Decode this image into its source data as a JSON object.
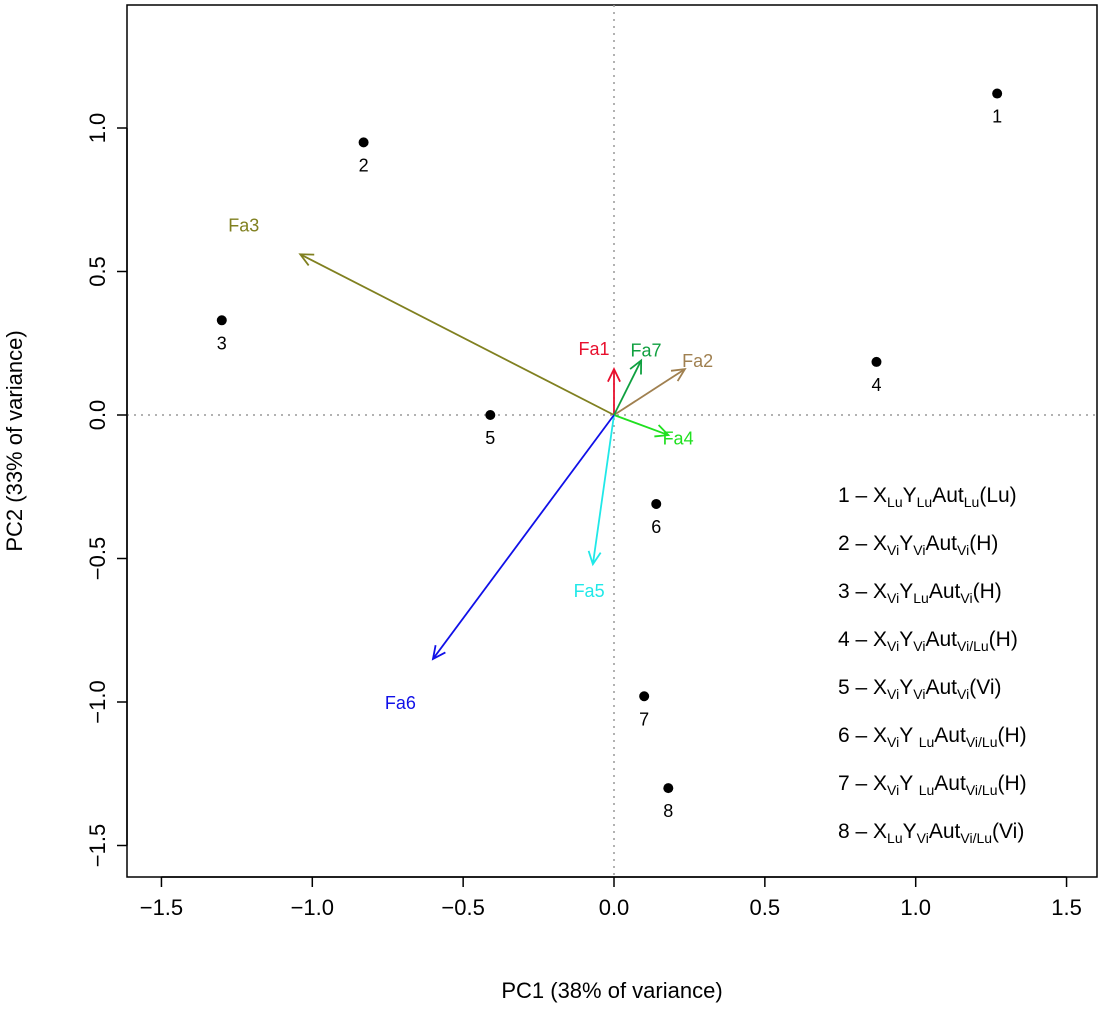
{
  "chart_data": {
    "type": "scatter",
    "subtype": "pca-biplot",
    "xlabel": "PC1 (38% of variance)",
    "ylabel": "PC2 (33% of variance)",
    "xlim": [
      -1.6,
      1.6
    ],
    "ylim": [
      -1.6,
      1.4
    ],
    "xticks": [
      -1.5,
      -1.0,
      -0.5,
      0.0,
      0.5,
      1.0,
      1.5
    ],
    "xtick_labels": [
      "−1.5",
      "−1.0",
      "−0.5",
      "0.0",
      "0.5",
      "1.0",
      "1.5"
    ],
    "yticks": [
      -1.5,
      -1.0,
      -0.5,
      0.0,
      0.5,
      1.0
    ],
    "ytick_labels": [
      "−1.5",
      "−1.0",
      "−0.5",
      "0.0",
      "0.5",
      "1.0"
    ],
    "grid": false,
    "reference_lines": [
      0,
      0
    ],
    "points": [
      {
        "label": "1",
        "x": 1.27,
        "y": 1.12
      },
      {
        "label": "2",
        "x": -0.83,
        "y": 0.95
      },
      {
        "label": "3",
        "x": -1.3,
        "y": 0.33
      },
      {
        "label": "4",
        "x": 0.87,
        "y": 0.185
      },
      {
        "label": "5",
        "x": -0.41,
        "y": 0.0
      },
      {
        "label": "6",
        "x": 0.14,
        "y": -0.31
      },
      {
        "label": "7",
        "x": 0.1,
        "y": -0.98
      },
      {
        "label": "8",
        "x": 0.18,
        "y": -1.3
      }
    ],
    "vectors": [
      {
        "label": "Fa1",
        "x": 0.0,
        "y": 0.16,
        "color": "#e8102e"
      },
      {
        "label": "Fa2",
        "x": 0.235,
        "y": 0.16,
        "color": "#a08050"
      },
      {
        "label": "Fa3",
        "x": -1.04,
        "y": 0.56,
        "color": "#808020"
      },
      {
        "label": "Fa4",
        "x": 0.18,
        "y": -0.07,
        "color": "#20e020"
      },
      {
        "label": "Fa5",
        "x": -0.07,
        "y": -0.52,
        "color": "#20e8e8"
      },
      {
        "label": "Fa6",
        "x": -0.6,
        "y": -0.85,
        "color": "#1010e8"
      },
      {
        "label": "Fa7",
        "x": 0.09,
        "y": 0.19,
        "color": "#10a040"
      }
    ],
    "legend": {
      "placement": "bottom-right",
      "entries": [
        [
          {
            "t": "1 – X"
          },
          {
            "t": "Lu",
            "sub": true
          },
          {
            "t": "Y"
          },
          {
            "t": "Lu",
            "sub": true
          },
          {
            "t": "Aut"
          },
          {
            "t": "Lu",
            "sub": true
          },
          {
            "t": "(Lu)"
          }
        ],
        [
          {
            "t": "2 – X"
          },
          {
            "t": "Vi",
            "sub": true
          },
          {
            "t": "Y"
          },
          {
            "t": "Vi",
            "sub": true
          },
          {
            "t": "Aut"
          },
          {
            "t": "Vi",
            "sub": true
          },
          {
            "t": "(H)"
          }
        ],
        [
          {
            "t": "3 – X"
          },
          {
            "t": "Vi",
            "sub": true
          },
          {
            "t": "Y"
          },
          {
            "t": "Lu",
            "sub": true
          },
          {
            "t": "Aut"
          },
          {
            "t": "Vi",
            "sub": true
          },
          {
            "t": "(H)"
          }
        ],
        [
          {
            "t": "4 – X"
          },
          {
            "t": "Vi",
            "sub": true
          },
          {
            "t": "Y"
          },
          {
            "t": "Vi",
            "sub": true
          },
          {
            "t": "Aut"
          },
          {
            "t": "Vi/Lu",
            "sub": true
          },
          {
            "t": "(H)"
          }
        ],
        [
          {
            "t": "5 – X"
          },
          {
            "t": "Vi",
            "sub": true
          },
          {
            "t": "Y"
          },
          {
            "t": "Vi",
            "sub": true
          },
          {
            "t": "Aut"
          },
          {
            "t": "Vi",
            "sub": true
          },
          {
            "t": "(Vi)"
          }
        ],
        [
          {
            "t": "6 – X"
          },
          {
            "t": "Vi",
            "sub": true
          },
          {
            "t": "Y "
          },
          {
            "t": "Lu",
            "sub": true
          },
          {
            "t": "Aut"
          },
          {
            "t": "Vi/Lu",
            "sub": true
          },
          {
            "t": "(H)"
          }
        ],
        [
          {
            "t": "7 – X"
          },
          {
            "t": "Vi",
            "sub": true
          },
          {
            "t": "Y "
          },
          {
            "t": "Lu",
            "sub": true
          },
          {
            "t": "Aut"
          },
          {
            "t": "Vi/Lu",
            "sub": true
          },
          {
            "t": "(H)"
          }
        ],
        [
          {
            "t": "8 – X"
          },
          {
            "t": "Lu",
            "sub": true
          },
          {
            "t": "Y"
          },
          {
            "t": "Vi",
            "sub": true
          },
          {
            "t": "Aut"
          },
          {
            "t": "Vi/Lu",
            "sub": true
          },
          {
            "t": "(Vi)"
          }
        ]
      ]
    }
  }
}
